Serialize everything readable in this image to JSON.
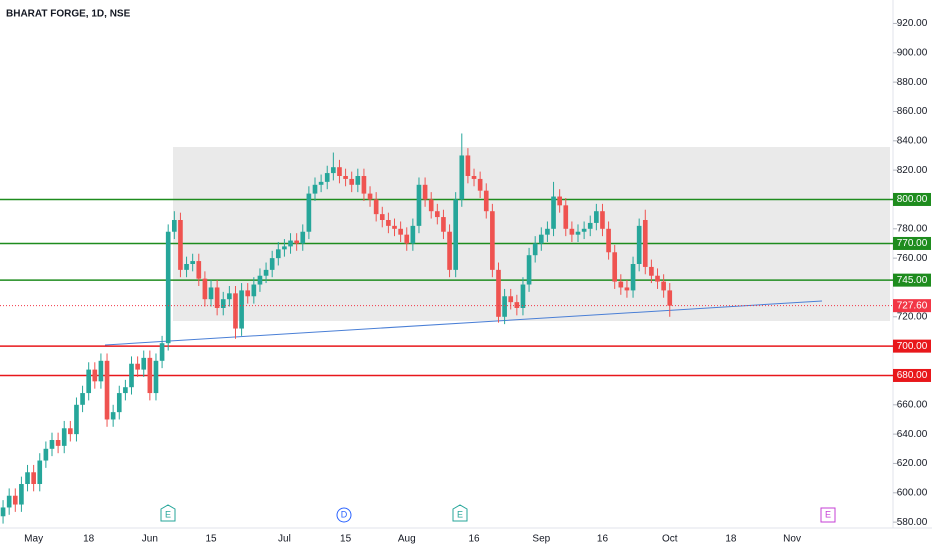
{
  "chart_data": {
    "type": "candlestick",
    "title": "BHARAT FORGE, 1D, NSE",
    "categories": [
      null,
      null,
      null,
      null,
      null,
      "May",
      null,
      null,
      null,
      null,
      null,
      null,
      null,
      null,
      "18",
      null,
      null,
      null,
      null,
      null,
      null,
      null,
      null,
      null,
      "Jun",
      null,
      null,
      null,
      null,
      null,
      null,
      null,
      null,
      null,
      "15",
      null,
      null,
      null,
      null,
      null,
      null,
      null,
      null,
      null,
      null,
      null,
      "Jul",
      null,
      null,
      null,
      null,
      null,
      null,
      null,
      null,
      null,
      "15",
      null,
      null,
      null,
      null,
      null,
      null,
      null,
      null,
      null,
      "Aug",
      null,
      null,
      null,
      null,
      null,
      null,
      null,
      null,
      null,
      null,
      "16",
      null,
      null,
      null,
      null,
      null,
      null,
      null,
      null,
      null,
      null,
      "Sep",
      null,
      null,
      null,
      null,
      null,
      null,
      null,
      null,
      null,
      "16",
      null,
      null,
      null,
      null,
      null,
      null,
      null,
      null,
      null,
      null,
      "Oct",
      null,
      null,
      null,
      null,
      null,
      null,
      null,
      null,
      null,
      "18",
      null,
      null,
      null,
      null,
      null,
      null,
      null,
      null,
      null,
      "Nov",
      null,
      null,
      null,
      null,
      null,
      null,
      null,
      null,
      null,
      null,
      null,
      null,
      null,
      null,
      null,
      null
    ],
    "open": [
      584,
      590,
      598,
      592,
      606,
      614,
      606,
      622,
      630,
      636,
      632,
      644,
      640,
      660,
      668,
      684,
      676,
      690,
      650,
      655,
      668,
      672,
      688,
      684,
      692,
      668,
      690,
      702,
      778,
      786,
      752,
      756,
      758,
      746,
      732,
      740,
      726,
      732,
      736,
      712,
      738,
      734,
      742,
      748,
      752,
      760,
      766,
      768,
      772,
      770,
      778,
      804,
      810,
      812,
      818,
      822,
      816,
      814,
      810,
      816,
      804,
      800,
      790,
      786,
      782,
      780,
      776,
      770,
      782,
      810,
      800,
      792,
      788,
      778,
      752,
      800,
      830,
      816,
      814,
      806,
      792,
      752,
      720,
      734,
      730,
      726,
      742,
      762,
      770,
      776,
      780,
      802,
      796,
      780,
      776,
      778,
      780,
      784,
      792,
      780,
      764,
      744,
      740,
      738,
      756,
      786,
      754,
      748,
      744,
      738,
      null,
      null,
      null,
      null,
      null,
      null,
      null,
      null,
      null,
      null,
      null,
      null,
      null,
      null,
      null,
      null,
      null,
      null,
      null,
      null,
      null,
      null,
      null,
      null,
      null,
      null,
      null,
      null,
      null,
      null,
      null,
      null,
      null,
      null,
      null,
      null
    ],
    "high": [
      595,
      603,
      603,
      611,
      619,
      619,
      627,
      635,
      641,
      641,
      649,
      649,
      665,
      673,
      689,
      689,
      695,
      695,
      660,
      673,
      677,
      693,
      693,
      697,
      697,
      695,
      707,
      783,
      792,
      791,
      761,
      763,
      763,
      751,
      745,
      745,
      737,
      741,
      741,
      743,
      743,
      747,
      753,
      757,
      765,
      771,
      773,
      777,
      777,
      783,
      809,
      815,
      817,
      823,
      832,
      827,
      821,
      819,
      821,
      821,
      809,
      805,
      795,
      791,
      787,
      785,
      781,
      787,
      815,
      815,
      805,
      797,
      793,
      783,
      805,
      845,
      835,
      821,
      819,
      811,
      797,
      757,
      739,
      739,
      735,
      747,
      767,
      775,
      781,
      785,
      812,
      807,
      801,
      785,
      783,
      785,
      789,
      797,
      797,
      785,
      769,
      749,
      745,
      761,
      787,
      793,
      759,
      753,
      749,
      743,
      null,
      null,
      null,
      null,
      null,
      null,
      null,
      null,
      null,
      null,
      null,
      null,
      null,
      null,
      null,
      null,
      null,
      null,
      null,
      null,
      null,
      null,
      null,
      null,
      null,
      null,
      null,
      null,
      null,
      null,
      null,
      null,
      null,
      null,
      null,
      null
    ],
    "low": [
      579,
      585,
      587,
      587,
      601,
      601,
      601,
      617,
      625,
      627,
      627,
      635,
      635,
      655,
      663,
      671,
      671,
      645,
      645,
      650,
      663,
      667,
      679,
      679,
      663,
      663,
      685,
      697,
      773,
      747,
      747,
      751,
      741,
      727,
      727,
      721,
      721,
      727,
      705,
      707,
      729,
      729,
      737,
      743,
      747,
      755,
      761,
      763,
      765,
      765,
      773,
      799,
      805,
      807,
      813,
      811,
      809,
      805,
      805,
      799,
      795,
      785,
      781,
      777,
      775,
      771,
      765,
      765,
      777,
      795,
      787,
      783,
      773,
      747,
      747,
      795,
      811,
      809,
      801,
      787,
      747,
      716,
      715,
      725,
      721,
      721,
      737,
      757,
      765,
      771,
      775,
      791,
      775,
      771,
      771,
      773,
      775,
      779,
      775,
      759,
      739,
      735,
      733,
      733,
      751,
      749,
      743,
      739,
      733,
      720,
      null,
      null,
      null,
      null,
      null,
      null,
      null,
      null,
      null,
      null,
      null,
      null,
      null,
      null,
      null,
      null,
      null,
      null,
      null,
      null,
      null,
      null,
      null,
      null,
      null,
      null,
      null,
      null,
      null,
      null,
      null,
      null,
      null,
      null,
      null,
      null
    ],
    "close": [
      590,
      598,
      592,
      606,
      614,
      606,
      622,
      630,
      636,
      632,
      644,
      640,
      660,
      668,
      684,
      676,
      690,
      650,
      655,
      668,
      672,
      688,
      684,
      692,
      668,
      690,
      702,
      778,
      786,
      752,
      756,
      758,
      746,
      732,
      740,
      726,
      732,
      736,
      712,
      738,
      734,
      742,
      748,
      752,
      760,
      766,
      768,
      772,
      770,
      778,
      804,
      810,
      812,
      818,
      822,
      816,
      814,
      810,
      816,
      804,
      800,
      790,
      786,
      782,
      780,
      776,
      770,
      782,
      810,
      800,
      792,
      788,
      778,
      752,
      800,
      830,
      816,
      814,
      806,
      792,
      752,
      720,
      734,
      730,
      726,
      742,
      762,
      770,
      776,
      780,
      802,
      796,
      780,
      776,
      778,
      780,
      784,
      792,
      780,
      764,
      744,
      740,
      738,
      756,
      782,
      754,
      748,
      744,
      738,
      727.6,
      null,
      null,
      null,
      null,
      null,
      null,
      null,
      null,
      null,
      null,
      null,
      null,
      null,
      null,
      null,
      null,
      null,
      null,
      null,
      null,
      null,
      null,
      null,
      null,
      null,
      null,
      null,
      null,
      null,
      null,
      null,
      null,
      null,
      null,
      null,
      null
    ],
    "up_color": "#26a69a",
    "down_color": "#ef5350",
    "ylim": [
      576,
      936
    ],
    "yticks": [
      {
        "value": 920,
        "label": "920.00"
      },
      {
        "value": 900,
        "label": "900.00"
      },
      {
        "value": 880,
        "label": "880.00"
      },
      {
        "value": 860,
        "label": "860.00"
      },
      {
        "value": 840,
        "label": "840.00"
      },
      {
        "value": 820,
        "label": "820.00"
      },
      {
        "value": 780,
        "label": "780.00"
      },
      {
        "value": 760,
        "label": "760.00"
      },
      {
        "value": 720,
        "label": "720.00"
      },
      {
        "value": 660,
        "label": "660.00"
      },
      {
        "value": 640,
        "label": "640.00"
      },
      {
        "value": 620,
        "label": "620.00"
      },
      {
        "value": 600,
        "label": "600.00"
      },
      {
        "value": 580,
        "label": "580.00"
      }
    ],
    "levels": [
      {
        "value": 800,
        "label": "800.00",
        "color": "#1e8c1e"
      },
      {
        "value": 770,
        "label": "770.00",
        "color": "#1e8c1e"
      },
      {
        "value": 745,
        "label": "745.00",
        "color": "#1e8c1e"
      },
      {
        "value": 700,
        "label": "700.00",
        "color": "#e8171b"
      },
      {
        "value": 680,
        "label": "680.00",
        "color": "#e8171b"
      }
    ],
    "last_price": {
      "value": 727.6,
      "label": "727.60",
      "color": "#f23645"
    },
    "events": [
      "E",
      "D",
      "E",
      "E"
    ]
  }
}
